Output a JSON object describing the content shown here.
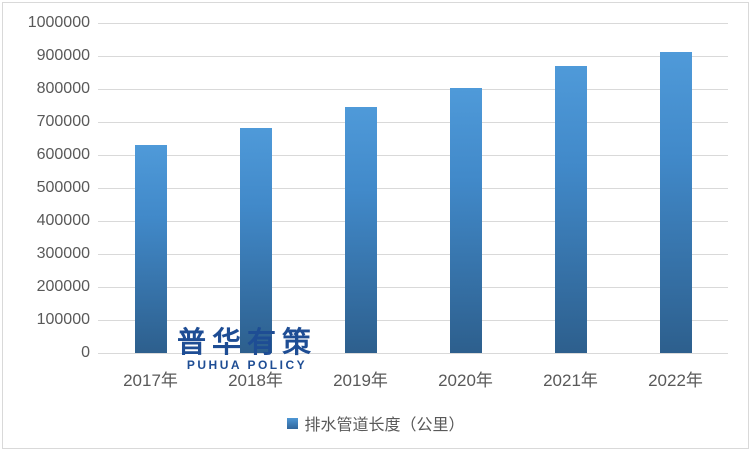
{
  "chart_data": {
    "type": "bar",
    "title": "",
    "xlabel": "",
    "ylabel": "",
    "categories": [
      "2017年",
      "2018年",
      "2019年",
      "2020年",
      "2021年",
      "2022年"
    ],
    "series": [
      {
        "name": "排水管道长度（公里）",
        "values": [
          630000,
          683000,
          744000,
          802000,
          871000,
          913000
        ]
      }
    ],
    "ylim": [
      0,
      1000000
    ],
    "ytick_step": 100000,
    "yticks_top_to_bottom": [
      "1000000",
      "900000",
      "800000",
      "700000",
      "600000",
      "500000",
      "400000",
      "300000",
      "200000",
      "100000",
      "0"
    ],
    "grid": true,
    "legend_position": "bottom",
    "bar_color_top": "#4F9AD9",
    "bar_color_bottom": "#2D5F8D",
    "gridline_color": "#D9D9D9",
    "tick_label_color": "#595959"
  },
  "legend": {
    "marker": "blue-square",
    "label": "排水管道长度（公里）"
  },
  "watermark": {
    "cn": "普华有策",
    "en": "PUHUA POLICY",
    "color": "#1E4D94"
  }
}
